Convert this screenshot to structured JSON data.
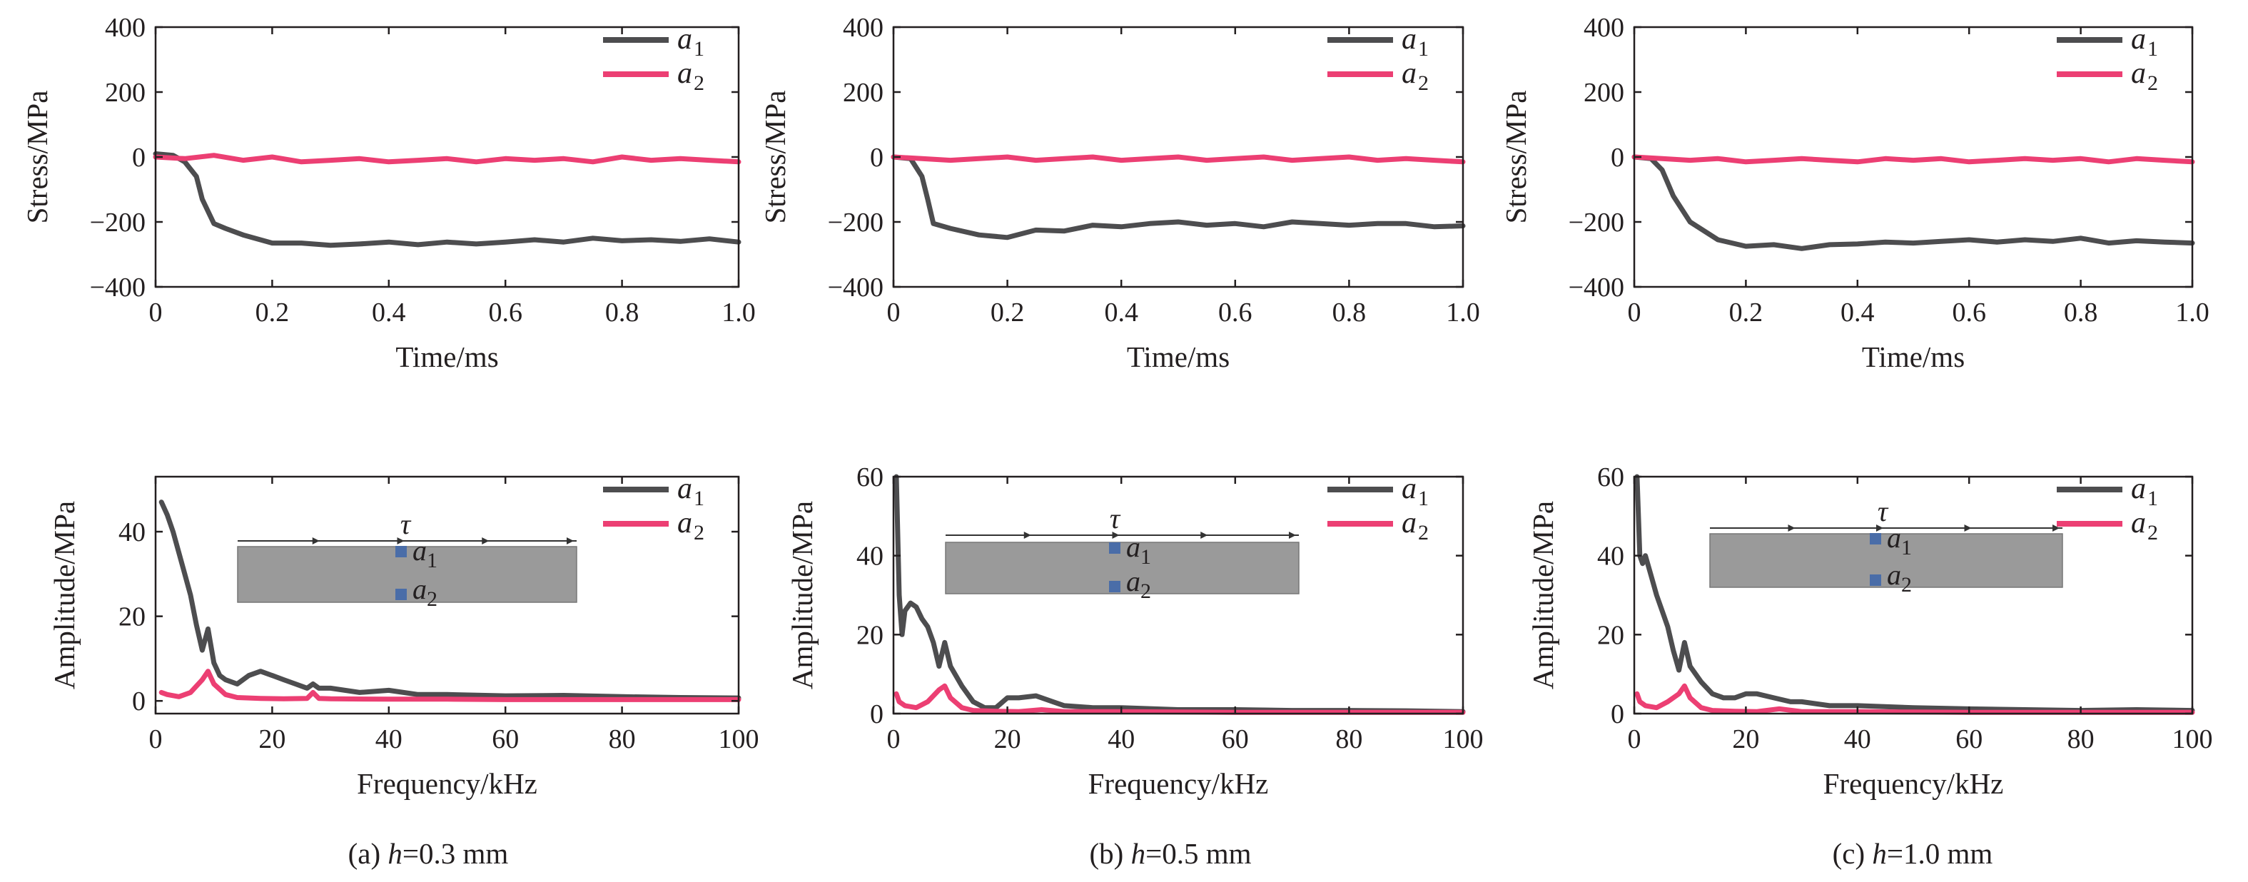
{
  "captions": [
    {
      "prefix": "(a) ",
      "var": "h",
      "rest": "=0.3 mm"
    },
    {
      "prefix": "(b) ",
      "var": "h",
      "rest": "=0.5 mm"
    },
    {
      "prefix": "(c) ",
      "var": "h",
      "rest": "=1.0 mm"
    }
  ],
  "inset": {
    "tau": "τ",
    "label1": "a",
    "sub1": "1",
    "label2": "a",
    "sub2": "2"
  },
  "colors": {
    "a1": "#4d4d4f",
    "a2": "#ec3f73",
    "axis": "#231f20",
    "inset_fill": "#9a9a9a",
    "marker": "#4a6da8"
  },
  "chart_data": [
    {
      "type": "line",
      "panel": "a-top",
      "xlabel": "Time/ms",
      "ylabel": "Stress/MPa",
      "xlim": [
        0,
        1
      ],
      "ylim": [
        -400,
        400
      ],
      "xticks": [
        "0",
        "0.2",
        "0.4",
        "0.6",
        "0.8",
        "1.0"
      ],
      "yticks": [
        "−400",
        "−200",
        "0",
        "200",
        "400"
      ],
      "legend": "top-right",
      "series": [
        {
          "name": "a",
          "sub": "1",
          "x": [
            0,
            0.03,
            0.05,
            0.07,
            0.08,
            0.1,
            0.12,
            0.15,
            0.2,
            0.25,
            0.3,
            0.35,
            0.4,
            0.45,
            0.5,
            0.55,
            0.6,
            0.65,
            0.7,
            0.75,
            0.8,
            0.85,
            0.9,
            0.95,
            1.0
          ],
          "y": [
            10,
            5,
            -15,
            -60,
            -130,
            -205,
            -220,
            -240,
            -265,
            -265,
            -272,
            -268,
            -262,
            -270,
            -262,
            -268,
            -262,
            -255,
            -262,
            -250,
            -258,
            -255,
            -260,
            -252,
            -262
          ]
        },
        {
          "name": "a",
          "sub": "2",
          "x": [
            0,
            0.05,
            0.1,
            0.15,
            0.2,
            0.25,
            0.3,
            0.35,
            0.4,
            0.45,
            0.5,
            0.55,
            0.6,
            0.65,
            0.7,
            0.75,
            0.8,
            0.85,
            0.9,
            0.95,
            1.0
          ],
          "y": [
            0,
            -5,
            5,
            -10,
            0,
            -15,
            -10,
            -5,
            -15,
            -10,
            -5,
            -15,
            -5,
            -10,
            -5,
            -15,
            0,
            -10,
            -5,
            -10,
            -15
          ]
        }
      ]
    },
    {
      "type": "line",
      "panel": "b-top",
      "xlabel": "Time/ms",
      "ylabel": "Stress/MPa",
      "xlim": [
        0,
        1
      ],
      "ylim": [
        -400,
        400
      ],
      "xticks": [
        "0",
        "0.2",
        "0.4",
        "0.6",
        "0.8",
        "1.0"
      ],
      "yticks": [
        "−400",
        "−200",
        "0",
        "200",
        "400"
      ],
      "legend": "top-right",
      "series": [
        {
          "name": "a",
          "sub": "1",
          "x": [
            0,
            0.03,
            0.05,
            0.06,
            0.07,
            0.1,
            0.15,
            0.2,
            0.25,
            0.3,
            0.35,
            0.4,
            0.45,
            0.5,
            0.55,
            0.6,
            0.65,
            0.7,
            0.75,
            0.8,
            0.85,
            0.9,
            0.95,
            1.0
          ],
          "y": [
            0,
            -5,
            -60,
            -130,
            -205,
            -220,
            -240,
            -248,
            -225,
            -228,
            -210,
            -215,
            -205,
            -200,
            -210,
            -205,
            -215,
            -200,
            -205,
            -210,
            -205,
            -205,
            -215,
            -212
          ]
        },
        {
          "name": "a",
          "sub": "2",
          "x": [
            0,
            0.05,
            0.1,
            0.15,
            0.2,
            0.25,
            0.3,
            0.35,
            0.4,
            0.45,
            0.5,
            0.55,
            0.6,
            0.65,
            0.7,
            0.75,
            0.8,
            0.85,
            0.9,
            0.95,
            1.0
          ],
          "y": [
            0,
            -5,
            -10,
            -5,
            0,
            -10,
            -5,
            0,
            -10,
            -5,
            0,
            -10,
            -5,
            0,
            -10,
            -5,
            0,
            -10,
            -5,
            -10,
            -15
          ]
        }
      ]
    },
    {
      "type": "line",
      "panel": "c-top",
      "xlabel": "Time/ms",
      "ylabel": "Stress/MPa",
      "xlim": [
        0,
        1
      ],
      "ylim": [
        -400,
        400
      ],
      "xticks": [
        "0",
        "0.2",
        "0.4",
        "0.6",
        "0.8",
        "1.0"
      ],
      "yticks": [
        "−400",
        "−200",
        "0",
        "200",
        "400"
      ],
      "legend": "top-right",
      "series": [
        {
          "name": "a",
          "sub": "1",
          "x": [
            0,
            0.03,
            0.05,
            0.07,
            0.1,
            0.15,
            0.2,
            0.25,
            0.3,
            0.35,
            0.4,
            0.45,
            0.5,
            0.55,
            0.6,
            0.65,
            0.7,
            0.75,
            0.8,
            0.85,
            0.9,
            0.95,
            1.0
          ],
          "y": [
            0,
            -5,
            -40,
            -120,
            -200,
            -255,
            -275,
            -270,
            -282,
            -270,
            -268,
            -262,
            -265,
            -260,
            -255,
            -262,
            -255,
            -260,
            -250,
            -265,
            -258,
            -262,
            -265
          ]
        },
        {
          "name": "a",
          "sub": "2",
          "x": [
            0,
            0.05,
            0.1,
            0.15,
            0.2,
            0.25,
            0.3,
            0.35,
            0.4,
            0.45,
            0.5,
            0.55,
            0.6,
            0.65,
            0.7,
            0.75,
            0.8,
            0.85,
            0.9,
            0.95,
            1.0
          ],
          "y": [
            0,
            -5,
            -10,
            -5,
            -15,
            -10,
            -5,
            -10,
            -15,
            -5,
            -10,
            -5,
            -15,
            -10,
            -5,
            -10,
            -5,
            -15,
            -5,
            -10,
            -15
          ]
        }
      ]
    },
    {
      "type": "line",
      "panel": "a-bottom",
      "xlabel": "Frequency/kHz",
      "ylabel": "Amplitude/MPa",
      "xlim": [
        0,
        100
      ],
      "ylim": [
        -3,
        53
      ],
      "xticks": [
        "0",
        "20",
        "40",
        "60",
        "80",
        "100"
      ],
      "yticks": [
        "0",
        "20",
        "40"
      ],
      "ytick_values": [
        0,
        20,
        40
      ],
      "legend": "top-right",
      "series": [
        {
          "name": "a",
          "sub": "1",
          "x": [
            1,
            2,
            3,
            4,
            5,
            6,
            7,
            8,
            9,
            10,
            11,
            12,
            14,
            16,
            18,
            20,
            22,
            24,
            26,
            27,
            28,
            30,
            35,
            40,
            45,
            50,
            60,
            70,
            80,
            90,
            100
          ],
          "y": [
            47,
            44,
            40,
            35,
            30,
            25,
            18,
            12,
            17,
            9,
            6,
            5,
            4,
            6,
            7,
            6,
            5,
            4,
            3,
            4,
            3,
            3,
            2,
            2.5,
            1.5,
            1.5,
            1.2,
            1.3,
            1.0,
            0.8,
            0.7
          ]
        },
        {
          "name": "a",
          "sub": "2",
          "x": [
            1,
            2,
            4,
            6,
            8,
            9,
            10,
            12,
            14,
            18,
            22,
            26,
            27,
            28,
            30,
            40,
            50,
            60,
            70,
            80,
            90,
            100
          ],
          "y": [
            2,
            1.5,
            1.0,
            2,
            5,
            7,
            4,
            1.5,
            0.8,
            0.6,
            0.5,
            0.6,
            2,
            0.6,
            0.5,
            0.4,
            0.4,
            0.3,
            0.3,
            0.3,
            0.3,
            0.3
          ]
        }
      ]
    },
    {
      "type": "line",
      "panel": "b-bottom",
      "xlabel": "Frequency/kHz",
      "ylabel": "Amplitude/MPa",
      "xlim": [
        0,
        100
      ],
      "ylim": [
        0,
        60
      ],
      "xticks": [
        "0",
        "20",
        "40",
        "60",
        "80",
        "100"
      ],
      "yticks": [
        "0",
        "20",
        "40",
        "60"
      ],
      "ytick_values": [
        0,
        20,
        40,
        60
      ],
      "legend": "top-right",
      "series": [
        {
          "name": "a",
          "sub": "1",
          "x": [
            0.5,
            1,
            1.5,
            2,
            3,
            4,
            5,
            6,
            7,
            8,
            9,
            10,
            12,
            14,
            16,
            18,
            20,
            22,
            25,
            28,
            30,
            35,
            40,
            50,
            60,
            70,
            80,
            90,
            100
          ],
          "y": [
            60,
            30,
            20,
            26,
            28,
            27,
            24,
            22,
            18,
            12,
            18,
            12,
            7,
            3,
            1.5,
            1.5,
            4,
            4,
            4.5,
            3,
            2,
            1.5,
            1.5,
            1.0,
            1.0,
            0.8,
            0.8,
            0.7,
            0.5
          ]
        },
        {
          "name": "a",
          "sub": "2",
          "x": [
            0.5,
            1,
            2,
            4,
            6,
            8,
            9,
            10,
            12,
            14,
            18,
            22,
            26,
            30,
            40,
            50,
            60,
            70,
            80,
            90,
            100
          ],
          "y": [
            5,
            3,
            2,
            1.5,
            3,
            6,
            7,
            4,
            1.5,
            0.8,
            0.6,
            0.5,
            1.0,
            0.5,
            0.5,
            0.4,
            0.3,
            0.3,
            0.3,
            0.3,
            0.3
          ]
        }
      ]
    },
    {
      "type": "line",
      "panel": "c-bottom",
      "xlabel": "Frequency/kHz",
      "ylabel": "Amplitude/MPa",
      "xlim": [
        0,
        100
      ],
      "ylim": [
        0,
        60
      ],
      "xticks": [
        "0",
        "20",
        "40",
        "60",
        "80",
        "100"
      ],
      "yticks": [
        "0",
        "20",
        "40",
        "60"
      ],
      "ytick_values": [
        0,
        20,
        40,
        60
      ],
      "legend": "top-right",
      "series": [
        {
          "name": "a",
          "sub": "1",
          "x": [
            0.5,
            1,
            1.5,
            2,
            3,
            4,
            5,
            6,
            7,
            8,
            9,
            10,
            12,
            14,
            16,
            18,
            20,
            22,
            25,
            28,
            30,
            35,
            40,
            50,
            60,
            70,
            80,
            90,
            100
          ],
          "y": [
            60,
            40,
            38,
            40,
            35,
            30,
            26,
            22,
            16,
            11,
            18,
            12,
            8,
            5,
            4,
            4,
            5,
            5,
            4,
            3,
            3,
            2,
            2,
            1.5,
            1.2,
            1.0,
            0.8,
            1.0,
            0.8
          ]
        },
        {
          "name": "a",
          "sub": "2",
          "x": [
            0.5,
            1,
            2,
            4,
            6,
            8,
            9,
            10,
            12,
            14,
            18,
            22,
            26,
            30,
            40,
            50,
            60,
            70,
            80,
            90,
            100
          ],
          "y": [
            5,
            3,
            2,
            1.5,
            3,
            5,
            7,
            4,
            1.5,
            0.8,
            0.6,
            0.5,
            1.2,
            0.5,
            0.5,
            0.4,
            0.3,
            0.3,
            0.3,
            0.3,
            0.3
          ]
        }
      ]
    }
  ]
}
